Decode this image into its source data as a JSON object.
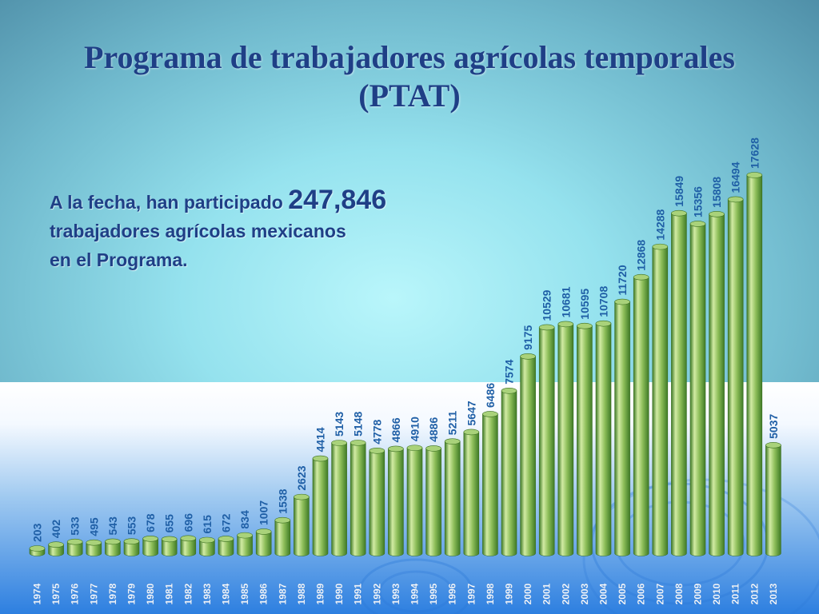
{
  "title": "Programa de trabajadores agrícolas temporales (PTAT)",
  "summary": {
    "before": "A la fecha, han participado ",
    "total": "247,846",
    "line2": "trabajadores agrícolas mexicanos",
    "line3": "en el Programa."
  },
  "colors": {
    "title": "#1f3f86",
    "value_label": "#1f5fa6",
    "bar_light": "#d2eba4",
    "bar_mid": "#8cbd58",
    "bar_dark": "#3f7a26"
  },
  "chart_data": {
    "type": "bar",
    "title": "",
    "xlabel": "",
    "ylabel": "",
    "ylim": [
      0,
      17628
    ],
    "grid": false,
    "legend": "none",
    "categories": [
      "1974",
      "1975",
      "1976",
      "1977",
      "1978",
      "1979",
      "1980",
      "1981",
      "1982",
      "1983",
      "1984",
      "1985",
      "1986",
      "1987",
      "1988",
      "1989",
      "1990",
      "1991",
      "1992",
      "1993",
      "1994",
      "1995",
      "1996",
      "1997",
      "1998",
      "1999",
      "2000",
      "2001",
      "2002",
      "2003",
      "2004",
      "2005",
      "2006",
      "2007",
      "2008",
      "2009",
      "2010",
      "2011",
      "2012",
      "2013"
    ],
    "values": [
      203,
      402,
      533,
      495,
      543,
      553,
      678,
      655,
      696,
      615,
      672,
      834,
      1007,
      1538,
      2623,
      4414,
      5143,
      5148,
      4778,
      4866,
      4910,
      4886,
      5211,
      5647,
      6486,
      7574,
      9175,
      10529,
      10681,
      10595,
      10708,
      11720,
      12868,
      14288,
      15849,
      15356,
      15808,
      16494,
      17628,
      5037
    ]
  }
}
